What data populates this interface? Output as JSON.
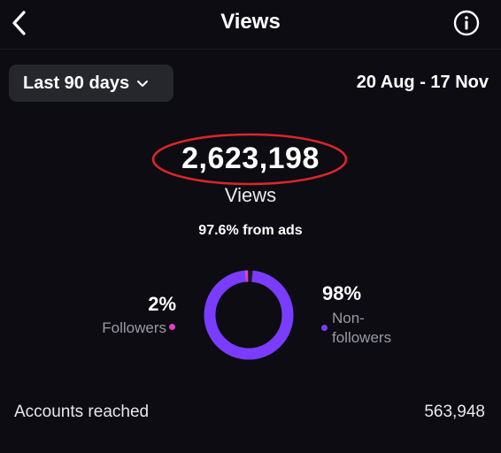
{
  "header": {
    "title": "Views",
    "back_icon": "chevron-left-icon",
    "info_icon": "info-icon"
  },
  "filter": {
    "range_label": "Last 90 days",
    "chevron_icon": "chevron-down-icon",
    "date_range": "20 Aug - 17 Nov"
  },
  "summary": {
    "total_views": "2,623,198",
    "total_label": "Views",
    "ads_share": "97.6% from ads",
    "highlight_color": "#d8262b"
  },
  "breakdown": {
    "followers": {
      "percent": "2%",
      "label": "Followers",
      "share": 0.02,
      "color": "#e040c8"
    },
    "non_followers": {
      "percent": "98%",
      "label_lines": [
        "Non-",
        "followers"
      ],
      "share": 0.98,
      "color": "#7a3cff"
    }
  },
  "accounts_reached": {
    "label": "Accounts reached",
    "value": "563,948"
  }
}
